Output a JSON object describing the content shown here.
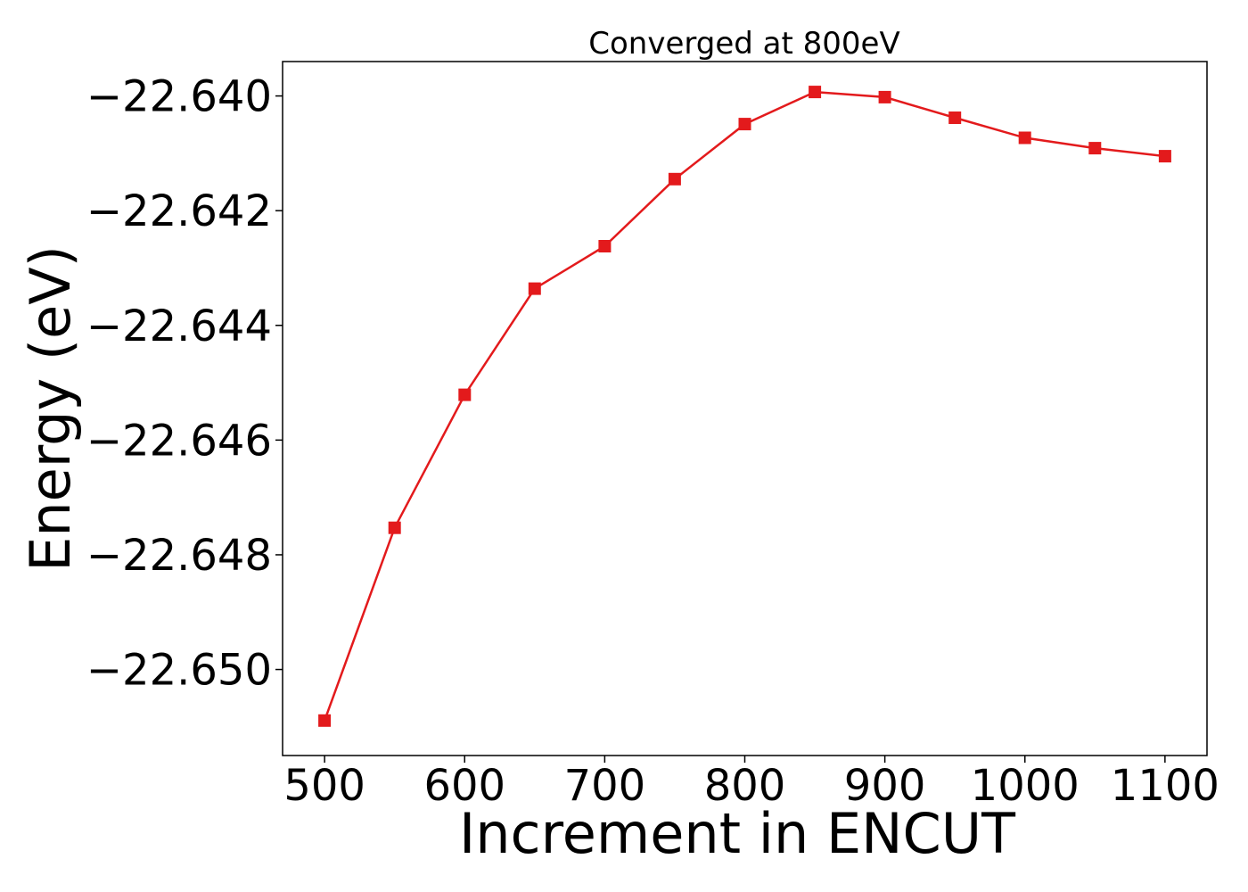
{
  "chart_data": {
    "type": "line",
    "title": "Converged at 800eV",
    "xlabel": "Increment in ENCUT",
    "ylabel": "Energy (eV)",
    "xlim": [
      470,
      1130
    ],
    "ylim": [
      -22.6515,
      -22.6394
    ],
    "xticks": [
      500,
      600,
      700,
      800,
      900,
      1000,
      1100
    ],
    "xtick_labels": [
      "500",
      "600",
      "700",
      "800",
      "900",
      "1000",
      "1100"
    ],
    "yticks": [
      -22.64,
      -22.642,
      -22.644,
      -22.646,
      -22.648,
      -22.65
    ],
    "ytick_labels": [
      "−22.640",
      "−22.642",
      "−22.644",
      "−22.646",
      "−22.648",
      "−22.650"
    ],
    "grid": false,
    "marker": "square",
    "color": "#e31a1c",
    "x": [
      500,
      550,
      600,
      650,
      700,
      750,
      800,
      850,
      900,
      950,
      1000,
      1050,
      1100
    ],
    "y": [
      -22.65089,
      -22.64753,
      -22.64521,
      -22.64336,
      -22.64262,
      -22.64145,
      -22.64049,
      -22.63993,
      -22.64002,
      -22.64038,
      -22.64073,
      -22.64091,
      -22.64105
    ]
  }
}
